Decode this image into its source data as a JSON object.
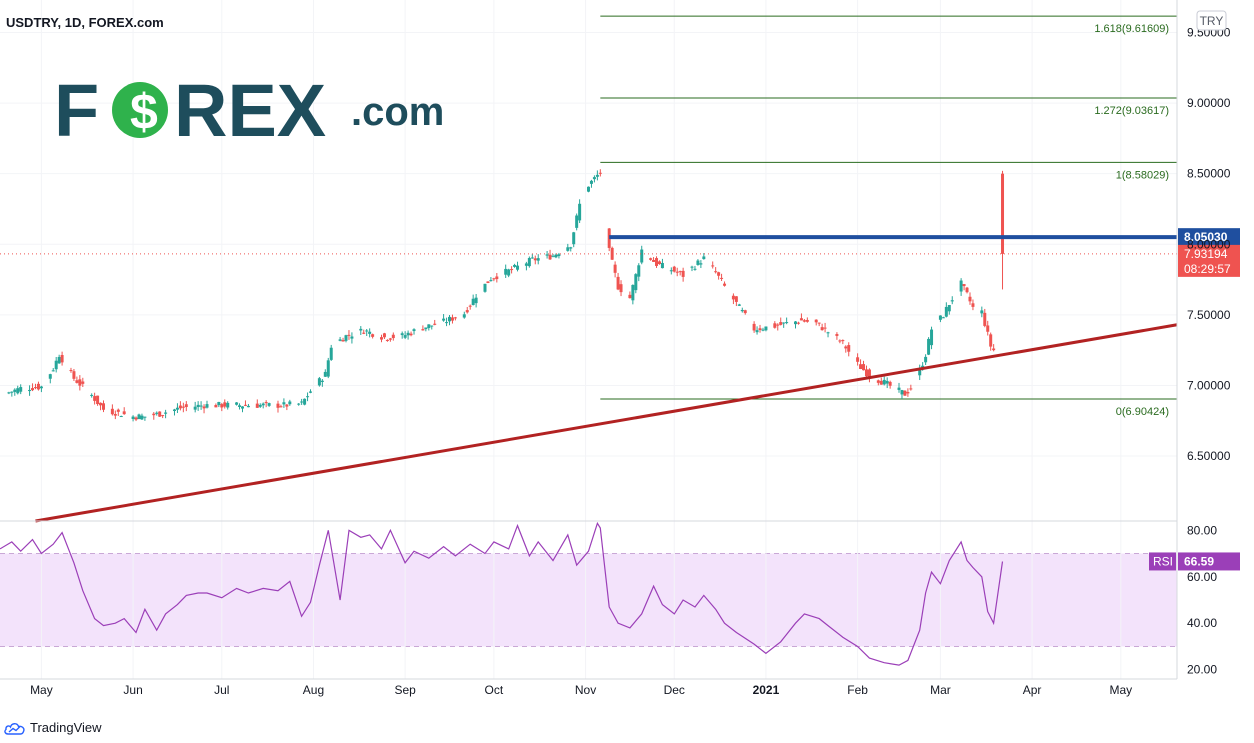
{
  "header": {
    "symbol_title": "USDTRY, 1D, FOREX.com"
  },
  "branding": {
    "logo_left": "F",
    "logo_right": "REX",
    "logo_suffix": ".com",
    "logo_color": "#1e4d5c",
    "logo_accent": "#2fb24c"
  },
  "footer": {
    "tradingview_label": "TradingView"
  },
  "chart_data": [
    {
      "type": "candlestick",
      "currency_button": "TRY",
      "ylim": [
        6.04,
        9.73
      ],
      "y_ticks": [
        "9.50000",
        "9.00000",
        "8.50000",
        "8.00000",
        "7.50000",
        "7.00000",
        "6.50000"
      ],
      "y_tick_values": [
        9.5,
        9.0,
        8.5,
        8.0,
        7.5,
        7.0,
        6.5
      ],
      "x_ticks": [
        "May",
        "Jun",
        "Jul",
        "Aug",
        "Sep",
        "Oct",
        "Nov",
        "Dec",
        "2021",
        "Feb",
        "Mar",
        "Apr",
        "May"
      ],
      "x_tick_dates": [
        "2020-05-01",
        "2020-06-01",
        "2020-07-01",
        "2020-08-01",
        "2020-09-01",
        "2020-10-01",
        "2020-11-01",
        "2020-12-01",
        "2021-01-01",
        "2021-02-01",
        "2021-03-01",
        "2021-04-01",
        "2021-05-01"
      ],
      "x_range": [
        "2020-04-17",
        "2021-05-20"
      ],
      "close_path": [
        [
          "2020-04-17",
          6.93
        ],
        [
          "2020-04-24",
          6.98
        ],
        [
          "2020-05-01",
          6.99
        ],
        [
          "2020-05-05",
          7.12
        ],
        [
          "2020-05-07",
          7.22
        ],
        [
          "2020-05-12",
          7.05
        ],
        [
          "2020-05-18",
          6.93
        ],
        [
          "2020-05-22",
          6.83
        ],
        [
          "2020-05-28",
          6.8
        ],
        [
          "2020-06-01",
          6.78
        ],
        [
          "2020-06-05",
          6.78
        ],
        [
          "2020-06-10",
          6.8
        ],
        [
          "2020-06-17",
          6.84
        ],
        [
          "2020-06-25",
          6.86
        ],
        [
          "2020-07-03",
          6.86
        ],
        [
          "2020-07-13",
          6.86
        ],
        [
          "2020-07-22",
          6.86
        ],
        [
          "2020-07-28",
          6.87
        ],
        [
          "2020-07-31",
          6.96
        ],
        [
          "2020-08-05",
          7.08
        ],
        [
          "2020-08-07",
          7.28
        ],
        [
          "2020-08-12",
          7.35
        ],
        [
          "2020-08-18",
          7.39
        ],
        [
          "2020-08-25",
          7.34
        ],
        [
          "2020-08-31",
          7.35
        ],
        [
          "2020-09-07",
          7.41
        ],
        [
          "2020-09-14",
          7.45
        ],
        [
          "2020-09-21",
          7.51
        ],
        [
          "2020-09-25",
          7.64
        ],
        [
          "2020-09-30",
          7.76
        ],
        [
          "2020-10-07",
          7.82
        ],
        [
          "2020-10-14",
          7.89
        ],
        [
          "2020-10-21",
          7.92
        ],
        [
          "2020-10-27",
          8.0
        ],
        [
          "2020-10-30",
          8.28
        ],
        [
          "2020-11-02",
          8.42
        ],
        [
          "2020-11-06",
          8.51
        ],
        [
          "2020-11-09",
          7.95
        ],
        [
          "2020-11-12",
          7.7
        ],
        [
          "2020-11-16",
          7.62
        ],
        [
          "2020-11-18",
          7.78
        ],
        [
          "2020-11-20",
          7.96
        ],
        [
          "2020-11-25",
          7.86
        ],
        [
          "2020-11-30",
          7.82
        ],
        [
          "2020-12-04",
          7.78
        ],
        [
          "2020-12-08",
          7.85
        ],
        [
          "2020-12-11",
          7.9
        ],
        [
          "2020-12-15",
          7.8
        ],
        [
          "2020-12-18",
          7.7
        ],
        [
          "2020-12-23",
          7.55
        ],
        [
          "2020-12-28",
          7.4
        ],
        [
          "2021-01-04",
          7.42
        ],
        [
          "2021-01-08",
          7.44
        ],
        [
          "2021-01-13",
          7.46
        ],
        [
          "2021-01-18",
          7.44
        ],
        [
          "2021-01-22",
          7.38
        ],
        [
          "2021-01-27",
          7.3
        ],
        [
          "2021-02-01",
          7.15
        ],
        [
          "2021-02-05",
          7.07
        ],
        [
          "2021-02-10",
          7.02
        ],
        [
          "2021-02-15",
          6.96
        ],
        [
          "2021-02-17",
          6.94
        ],
        [
          "2021-02-19",
          6.98
        ],
        [
          "2021-02-22",
          7.1
        ],
        [
          "2021-02-24",
          7.22
        ],
        [
          "2021-02-26",
          7.4
        ],
        [
          "2021-03-02",
          7.5
        ],
        [
          "2021-03-04",
          7.58
        ],
        [
          "2021-03-08",
          7.72
        ],
        [
          "2021-03-10",
          7.64
        ],
        [
          "2021-03-12",
          7.55
        ],
        [
          "2021-03-15",
          7.52
        ],
        [
          "2021-03-18",
          7.28
        ],
        [
          "2021-03-19",
          7.25
        ],
        [
          "2021-03-22",
          7.93194
        ]
      ],
      "last_candle": {
        "date": "2021-03-22",
        "open": 8.5,
        "high": 8.52,
        "low": 7.68,
        "close": 7.93194
      },
      "fibonacci": [
        {
          "level": 1.618,
          "value": 9.61609,
          "label": "1.618(9.61609)"
        },
        {
          "level": 1.272,
          "value": 9.03617,
          "label": "1.272(9.03617)"
        },
        {
          "level": 1,
          "value": 8.58029,
          "label": "1(8.58029)"
        },
        {
          "level": 0,
          "value": 6.90424,
          "label": "0(6.90424)"
        }
      ],
      "fib_start": "2020-11-06",
      "fib_end": "2021-05-20",
      "fib_color": "#2a6b1f",
      "horizontal_line": {
        "value": 8.0503,
        "label": "8.05030",
        "color": "#1f4f9f",
        "start": "2020-11-09"
      },
      "trendline": {
        "start": [
          "2020-04-29",
          6.04
        ],
        "end": [
          "2021-05-20",
          7.43
        ],
        "color": "#b22222"
      },
      "last_price": {
        "value": 7.93194,
        "label": "7.93194",
        "countdown": "08:29:57",
        "color": "#ef5350"
      },
      "up_color": "#26a69a",
      "down_color": "#ef5350"
    },
    {
      "type": "line",
      "name": "RSI",
      "legend_label": "RSI",
      "current_value_label": "66.59",
      "ylim": [
        16.0,
        84.0
      ],
      "y_ticks": [
        "80.00",
        "60.00",
        "40.00",
        "20.00"
      ],
      "y_tick_values": [
        80,
        60,
        40,
        20
      ],
      "overbought": 70,
      "oversold": 30,
      "band_color": "#f3e3fb",
      "line_color": "#9b3fb8",
      "points": [
        [
          "2020-04-17",
          72
        ],
        [
          "2020-04-21",
          75
        ],
        [
          "2020-04-24",
          71
        ],
        [
          "2020-04-28",
          76
        ],
        [
          "2020-05-01",
          70
        ],
        [
          "2020-05-05",
          74
        ],
        [
          "2020-05-08",
          79
        ],
        [
          "2020-05-12",
          66
        ],
        [
          "2020-05-15",
          54
        ],
        [
          "2020-05-19",
          42
        ],
        [
          "2020-05-22",
          39
        ],
        [
          "2020-05-26",
          40
        ],
        [
          "2020-05-29",
          42
        ],
        [
          "2020-06-02",
          36
        ],
        [
          "2020-06-05",
          46
        ],
        [
          "2020-06-09",
          37
        ],
        [
          "2020-06-12",
          44
        ],
        [
          "2020-06-16",
          48
        ],
        [
          "2020-06-19",
          52
        ],
        [
          "2020-06-23",
          53
        ],
        [
          "2020-06-26",
          53
        ],
        [
          "2020-07-01",
          51
        ],
        [
          "2020-07-06",
          55
        ],
        [
          "2020-07-10",
          53
        ],
        [
          "2020-07-15",
          55
        ],
        [
          "2020-07-20",
          54
        ],
        [
          "2020-07-24",
          58
        ],
        [
          "2020-07-28",
          43
        ],
        [
          "2020-07-31",
          49
        ],
        [
          "2020-08-03",
          65
        ],
        [
          "2020-08-06",
          80
        ],
        [
          "2020-08-10",
          50
        ],
        [
          "2020-08-13",
          80
        ],
        [
          "2020-08-17",
          77
        ],
        [
          "2020-08-20",
          78
        ],
        [
          "2020-08-24",
          72
        ],
        [
          "2020-08-27",
          80
        ],
        [
          "2020-09-01",
          66
        ],
        [
          "2020-09-04",
          71
        ],
        [
          "2020-09-09",
          68
        ],
        [
          "2020-09-14",
          73
        ],
        [
          "2020-09-18",
          69
        ],
        [
          "2020-09-23",
          74
        ],
        [
          "2020-09-28",
          70
        ],
        [
          "2020-10-01",
          75
        ],
        [
          "2020-10-06",
          72
        ],
        [
          "2020-10-09",
          82
        ],
        [
          "2020-10-13",
          69
        ],
        [
          "2020-10-16",
          75
        ],
        [
          "2020-10-21",
          67
        ],
        [
          "2020-10-26",
          78
        ],
        [
          "2020-10-29",
          65
        ],
        [
          "2020-11-02",
          71
        ],
        [
          "2020-11-05",
          83
        ],
        [
          "2020-11-06",
          81
        ],
        [
          "2020-11-09",
          47
        ],
        [
          "2020-11-12",
          40
        ],
        [
          "2020-11-16",
          38
        ],
        [
          "2020-11-20",
          44
        ],
        [
          "2020-11-24",
          56
        ],
        [
          "2020-11-27",
          48
        ],
        [
          "2020-12-01",
          44
        ],
        [
          "2020-12-04",
          50
        ],
        [
          "2020-12-08",
          47
        ],
        [
          "2020-12-11",
          52
        ],
        [
          "2020-12-15",
          46
        ],
        [
          "2020-12-18",
          40
        ],
        [
          "2020-12-22",
          36
        ],
        [
          "2020-12-28",
          31
        ],
        [
          "2021-01-01",
          27
        ],
        [
          "2021-01-06",
          32
        ],
        [
          "2021-01-11",
          40
        ],
        [
          "2021-01-14",
          44
        ],
        [
          "2021-01-19",
          42
        ],
        [
          "2021-01-22",
          39
        ],
        [
          "2021-01-27",
          34
        ],
        [
          "2021-02-01",
          30
        ],
        [
          "2021-02-05",
          25
        ],
        [
          "2021-02-10",
          23
        ],
        [
          "2021-02-15",
          22
        ],
        [
          "2021-02-18",
          24
        ],
        [
          "2021-02-22",
          37
        ],
        [
          "2021-02-24",
          53
        ],
        [
          "2021-02-26",
          62
        ],
        [
          "2021-03-01",
          57
        ],
        [
          "2021-03-04",
          67
        ],
        [
          "2021-03-08",
          75
        ],
        [
          "2021-03-10",
          67
        ],
        [
          "2021-03-12",
          64
        ],
        [
          "2021-03-15",
          60
        ],
        [
          "2021-03-17",
          45
        ],
        [
          "2021-03-19",
          40
        ],
        [
          "2021-03-22",
          66.59
        ]
      ]
    }
  ]
}
